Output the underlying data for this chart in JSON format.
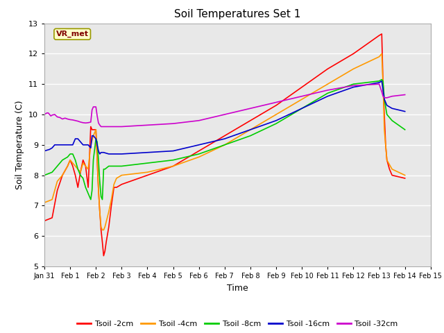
{
  "title": "Soil Temperatures Set 1",
  "xlabel": "Time",
  "ylabel": "Soil Temperature (C)",
  "ylim": [
    5.0,
    13.0
  ],
  "yticks": [
    5.0,
    6.0,
    7.0,
    8.0,
    9.0,
    10.0,
    11.0,
    12.0,
    13.0
  ],
  "background_color": "#e8e8e8",
  "annotation_text": "VR_met",
  "annotation_box_color": "#ffffcc",
  "annotation_text_color": "#800000",
  "series": {
    "Tsoil -2cm": {
      "color": "#ff0000",
      "points": [
        [
          0.0,
          6.5
        ],
        [
          0.3,
          6.6
        ],
        [
          0.5,
          7.5
        ],
        [
          0.7,
          8.0
        ],
        [
          0.9,
          8.3
        ],
        [
          1.0,
          8.5
        ],
        [
          1.1,
          8.3
        ],
        [
          1.2,
          8.0
        ],
        [
          1.3,
          7.6
        ],
        [
          1.4,
          8.1
        ],
        [
          1.5,
          8.5
        ],
        [
          1.6,
          8.3
        ],
        [
          1.7,
          7.6
        ],
        [
          1.8,
          9.6
        ],
        [
          1.85,
          9.5
        ],
        [
          1.9,
          9.5
        ],
        [
          2.0,
          9.5
        ],
        [
          2.05,
          8.5
        ],
        [
          2.1,
          7.5
        ],
        [
          2.15,
          6.8
        ],
        [
          2.2,
          6.2
        ],
        [
          2.25,
          5.8
        ],
        [
          2.3,
          5.35
        ],
        [
          2.35,
          5.5
        ],
        [
          2.4,
          5.8
        ],
        [
          2.5,
          6.3
        ],
        [
          2.6,
          7.0
        ],
        [
          2.7,
          7.6
        ],
        [
          2.8,
          7.6
        ],
        [
          3.0,
          7.7
        ],
        [
          4.0,
          8.0
        ],
        [
          5.0,
          8.3
        ],
        [
          6.0,
          8.8
        ],
        [
          7.0,
          9.3
        ],
        [
          8.0,
          9.8
        ],
        [
          9.0,
          10.3
        ],
        [
          10.0,
          10.9
        ],
        [
          11.0,
          11.5
        ],
        [
          12.0,
          12.0
        ],
        [
          13.0,
          12.6
        ],
        [
          13.1,
          12.65
        ],
        [
          13.15,
          11.0
        ],
        [
          13.2,
          10.0
        ],
        [
          13.25,
          9.0
        ],
        [
          13.3,
          8.5
        ],
        [
          13.4,
          8.2
        ],
        [
          13.5,
          8.0
        ],
        [
          14.0,
          7.9
        ]
      ]
    },
    "Tsoil -4cm": {
      "color": "#ff9900",
      "points": [
        [
          0.0,
          7.1
        ],
        [
          0.3,
          7.2
        ],
        [
          0.5,
          7.8
        ],
        [
          0.7,
          8.0
        ],
        [
          0.9,
          8.3
        ],
        [
          1.0,
          8.5
        ],
        [
          1.2,
          8.3
        ],
        [
          1.4,
          8.1
        ],
        [
          1.5,
          8.4
        ],
        [
          1.7,
          8.2
        ],
        [
          1.8,
          9.0
        ],
        [
          1.9,
          9.3
        ],
        [
          2.0,
          9.5
        ],
        [
          2.05,
          8.5
        ],
        [
          2.1,
          7.5
        ],
        [
          2.15,
          6.8
        ],
        [
          2.2,
          6.3
        ],
        [
          2.25,
          6.2
        ],
        [
          2.3,
          6.2
        ],
        [
          2.35,
          6.3
        ],
        [
          2.5,
          6.8
        ],
        [
          2.6,
          7.2
        ],
        [
          2.7,
          7.7
        ],
        [
          2.8,
          7.9
        ],
        [
          3.0,
          8.0
        ],
        [
          4.0,
          8.1
        ],
        [
          5.0,
          8.3
        ],
        [
          6.0,
          8.6
        ],
        [
          7.0,
          9.0
        ],
        [
          8.0,
          9.5
        ],
        [
          9.0,
          10.0
        ],
        [
          10.0,
          10.5
        ],
        [
          11.0,
          11.0
        ],
        [
          12.0,
          11.5
        ],
        [
          13.0,
          11.9
        ],
        [
          13.1,
          12.0
        ],
        [
          13.15,
          11.0
        ],
        [
          13.2,
          9.5
        ],
        [
          13.3,
          8.5
        ],
        [
          13.5,
          8.2
        ],
        [
          14.0,
          8.0
        ]
      ]
    },
    "Tsoil -8cm": {
      "color": "#00cc00",
      "points": [
        [
          0.0,
          8.0
        ],
        [
          0.3,
          8.1
        ],
        [
          0.5,
          8.3
        ],
        [
          0.7,
          8.5
        ],
        [
          0.9,
          8.6
        ],
        [
          1.0,
          8.7
        ],
        [
          1.1,
          8.7
        ],
        [
          1.2,
          8.5
        ],
        [
          1.3,
          8.2
        ],
        [
          1.4,
          8.0
        ],
        [
          1.5,
          7.9
        ],
        [
          1.6,
          7.6
        ],
        [
          1.7,
          7.4
        ],
        [
          1.8,
          7.2
        ],
        [
          1.85,
          7.5
        ],
        [
          1.9,
          8.5
        ],
        [
          2.0,
          9.2
        ],
        [
          2.05,
          9.1
        ],
        [
          2.1,
          8.5
        ],
        [
          2.15,
          7.8
        ],
        [
          2.2,
          7.3
        ],
        [
          2.25,
          7.2
        ],
        [
          2.3,
          8.2
        ],
        [
          2.35,
          8.2
        ],
        [
          2.5,
          8.3
        ],
        [
          3.0,
          8.3
        ],
        [
          4.0,
          8.4
        ],
        [
          5.0,
          8.5
        ],
        [
          6.0,
          8.7
        ],
        [
          7.0,
          9.0
        ],
        [
          8.0,
          9.3
        ],
        [
          9.0,
          9.7
        ],
        [
          10.0,
          10.2
        ],
        [
          11.0,
          10.7
        ],
        [
          12.0,
          11.0
        ],
        [
          13.0,
          11.1
        ],
        [
          13.1,
          11.15
        ],
        [
          13.15,
          11.1
        ],
        [
          13.2,
          10.5
        ],
        [
          13.3,
          10.0
        ],
        [
          13.5,
          9.8
        ],
        [
          14.0,
          9.5
        ]
      ]
    },
    "Tsoil -16cm": {
      "color": "#0000cc",
      "points": [
        [
          0.0,
          8.8
        ],
        [
          0.2,
          8.85
        ],
        [
          0.3,
          8.9
        ],
        [
          0.4,
          9.0
        ],
        [
          0.5,
          9.0
        ],
        [
          0.7,
          9.0
        ],
        [
          0.9,
          9.0
        ],
        [
          1.0,
          9.0
        ],
        [
          1.1,
          9.0
        ],
        [
          1.2,
          9.2
        ],
        [
          1.3,
          9.2
        ],
        [
          1.4,
          9.1
        ],
        [
          1.5,
          9.0
        ],
        [
          1.6,
          9.0
        ],
        [
          1.7,
          9.0
        ],
        [
          1.8,
          8.9
        ],
        [
          1.85,
          9.3
        ],
        [
          1.9,
          9.3
        ],
        [
          2.0,
          9.2
        ],
        [
          2.05,
          9.0
        ],
        [
          2.1,
          8.8
        ],
        [
          2.15,
          8.7
        ],
        [
          2.2,
          8.75
        ],
        [
          2.3,
          8.75
        ],
        [
          2.5,
          8.7
        ],
        [
          3.0,
          8.7
        ],
        [
          4.0,
          8.75
        ],
        [
          5.0,
          8.8
        ],
        [
          6.0,
          9.0
        ],
        [
          7.0,
          9.2
        ],
        [
          8.0,
          9.5
        ],
        [
          9.0,
          9.8
        ],
        [
          10.0,
          10.2
        ],
        [
          11.0,
          10.6
        ],
        [
          12.0,
          10.9
        ],
        [
          13.0,
          11.05
        ],
        [
          13.1,
          11.1
        ],
        [
          13.15,
          10.8
        ],
        [
          13.2,
          10.5
        ],
        [
          13.3,
          10.3
        ],
        [
          13.5,
          10.2
        ],
        [
          14.0,
          10.1
        ]
      ]
    },
    "Tsoil -32cm": {
      "color": "#cc00cc",
      "points": [
        [
          0.0,
          10.0
        ],
        [
          0.1,
          10.05
        ],
        [
          0.15,
          10.05
        ],
        [
          0.2,
          10.0
        ],
        [
          0.25,
          9.95
        ],
        [
          0.3,
          9.98
        ],
        [
          0.4,
          10.0
        ],
        [
          0.5,
          9.92
        ],
        [
          0.6,
          9.9
        ],
        [
          0.7,
          9.85
        ],
        [
          0.8,
          9.88
        ],
        [
          0.9,
          9.85
        ],
        [
          1.0,
          9.83
        ],
        [
          1.1,
          9.82
        ],
        [
          1.2,
          9.8
        ],
        [
          1.3,
          9.78
        ],
        [
          1.4,
          9.75
        ],
        [
          1.5,
          9.73
        ],
        [
          1.6,
          9.72
        ],
        [
          1.7,
          9.73
        ],
        [
          1.8,
          9.75
        ],
        [
          1.85,
          10.15
        ],
        [
          1.9,
          10.25
        ],
        [
          2.0,
          10.25
        ],
        [
          2.05,
          9.95
        ],
        [
          2.1,
          9.72
        ],
        [
          2.15,
          9.65
        ],
        [
          2.2,
          9.6
        ],
        [
          2.5,
          9.6
        ],
        [
          3.0,
          9.6
        ],
        [
          4.0,
          9.65
        ],
        [
          5.0,
          9.7
        ],
        [
          6.0,
          9.8
        ],
        [
          7.0,
          10.0
        ],
        [
          8.0,
          10.2
        ],
        [
          9.0,
          10.4
        ],
        [
          10.0,
          10.6
        ],
        [
          11.0,
          10.8
        ],
        [
          12.0,
          10.95
        ],
        [
          13.0,
          11.0
        ],
        [
          13.1,
          10.75
        ],
        [
          13.15,
          10.6
        ],
        [
          13.2,
          10.55
        ],
        [
          13.3,
          10.55
        ],
        [
          13.5,
          10.6
        ],
        [
          14.0,
          10.65
        ]
      ]
    }
  },
  "xtick_labels": [
    "Jan 31",
    "Feb 1",
    "Feb 2",
    "Feb 3",
    "Feb 4",
    "Feb 5",
    "Feb 6",
    "Feb 7",
    "Feb 8",
    "Feb 9",
    "Feb 10",
    "Feb 11",
    "Feb 12",
    "Feb 13",
    "Feb 14",
    "Feb 15"
  ],
  "xtick_positions": [
    0,
    1,
    2,
    3,
    4,
    5,
    6,
    7,
    8,
    9,
    10,
    11,
    12,
    13,
    14,
    15
  ],
  "legend_labels": [
    "Tsoil -2cm",
    "Tsoil -4cm",
    "Tsoil -8cm",
    "Tsoil -16cm",
    "Tsoil -32cm"
  ],
  "legend_colors": [
    "#ff0000",
    "#ff9900",
    "#00cc00",
    "#0000cc",
    "#cc00cc"
  ],
  "title_fontsize": 11,
  "ylabel_fontsize": 9,
  "xlabel_fontsize": 9,
  "xtick_fontsize": 7,
  "ytick_fontsize": 8
}
